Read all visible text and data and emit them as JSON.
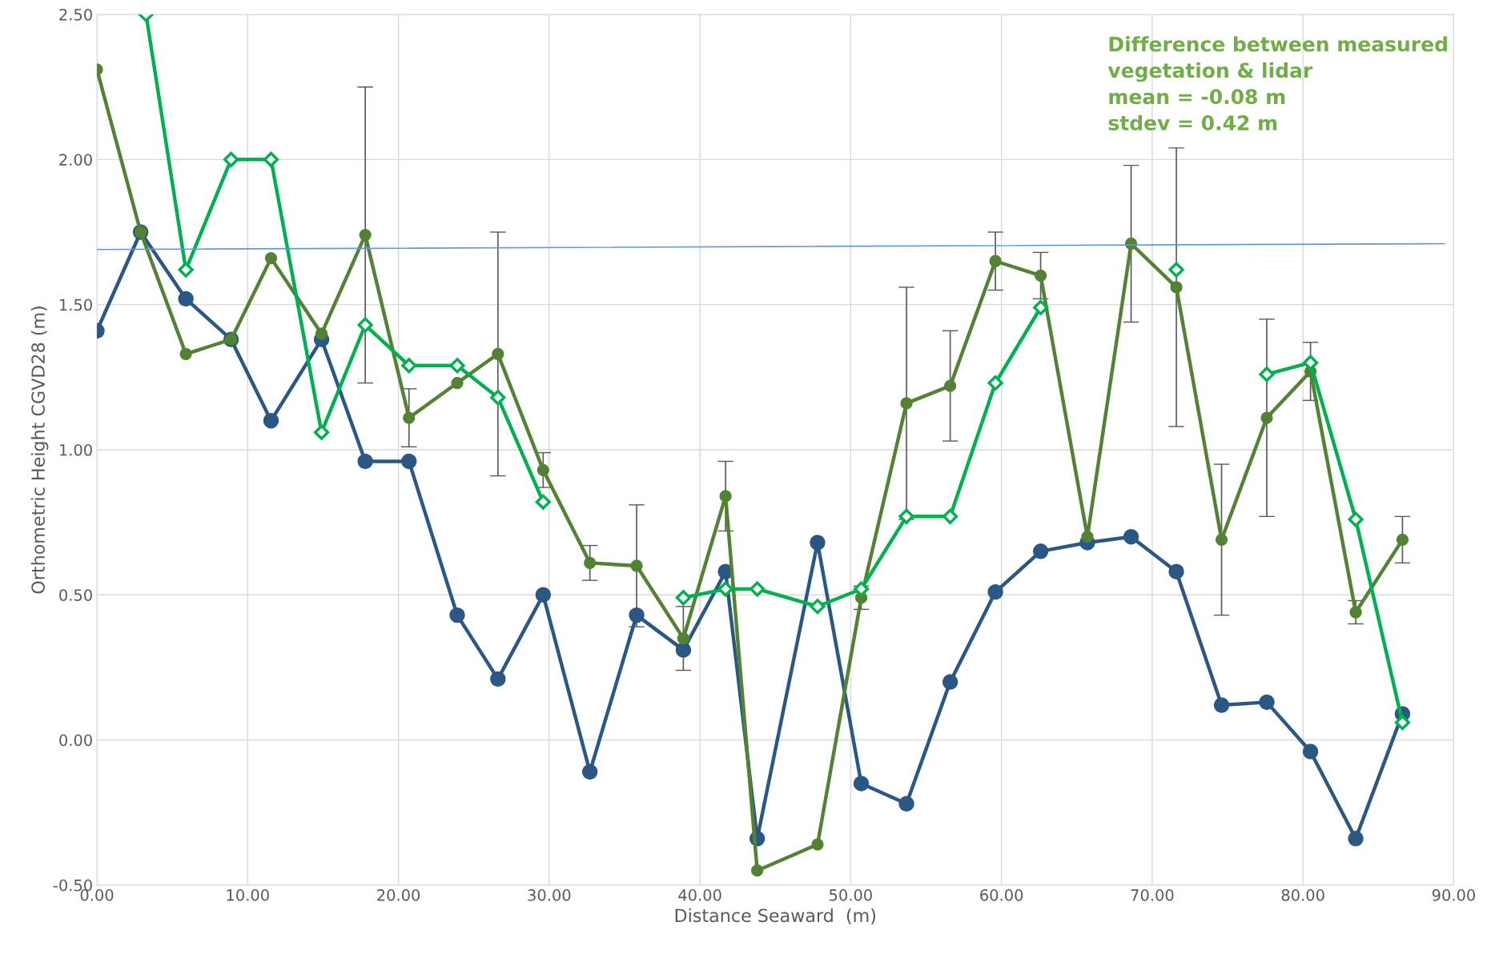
{
  "chart_data": {
    "type": "line",
    "xlabel": "Distance Seaward  (m)",
    "ylabel": "Orthometric Height CGVD28 (m)",
    "x": [
      0,
      2.9,
      5.9,
      8.9,
      11.55,
      14.9,
      17.8,
      20.7,
      23.9,
      26.6,
      29.6,
      32.7,
      35.8,
      38.9,
      41.7,
      43.8,
      47.8,
      50.7,
      53.7,
      56.6,
      59.6,
      62.6,
      65.7,
      68.6,
      71.6,
      74.6,
      77.6,
      80.5,
      83.5,
      86.6
    ],
    "series": [
      {
        "color": "#2a5783",
        "marker": "circle",
        "values": [
          1.41,
          1.75,
          1.52,
          1.38,
          1.1,
          1.38,
          0.96,
          0.96,
          0.43,
          0.21,
          0.5,
          -0.11,
          0.43,
          0.31,
          0.58,
          -0.34,
          0.68,
          -0.15,
          -0.22,
          0.2,
          0.51,
          0.65,
          0.68,
          0.7,
          0.58,
          0.12,
          0.13,
          -0.04,
          -0.34,
          0.09
        ]
      },
      {
        "color": "#548235",
        "marker": "circle",
        "values": [
          2.31,
          1.75,
          1.33,
          1.38,
          1.66,
          1.4,
          1.74,
          1.11,
          1.23,
          1.33,
          0.93,
          0.61,
          0.6,
          0.35,
          0.84,
          -0.45,
          -0.36,
          0.49,
          1.16,
          1.22,
          1.65,
          1.6,
          0.7,
          1.71,
          1.56,
          0.69,
          1.11,
          1.27,
          0.44,
          0.69
        ],
        "errors": [
          null,
          null,
          null,
          null,
          null,
          null,
          0.51,
          0.1,
          null,
          0.42,
          0.06,
          0.06,
          0.21,
          0.11,
          0.12,
          null,
          null,
          0.04,
          0.4,
          0.19,
          0.1,
          0.08,
          null,
          0.27,
          0.48,
          0.26,
          0.34,
          0.1,
          0.04,
          0.08
        ]
      },
      {
        "color": "#00b050",
        "marker": "diamond",
        "x": [
          3.26,
          5.9,
          8.9,
          11.55,
          14.9,
          17.8,
          20.7,
          23.9,
          26.6,
          29.6,
          32.7,
          35.8,
          38.9,
          41.7,
          43.8,
          47.8,
          50.7,
          53.7,
          56.6,
          59.6,
          62.6,
          65.7,
          68.6,
          71.6,
          74.6,
          77.6,
          80.5,
          83.5,
          86.6
        ],
        "values": [
          2.5,
          1.62,
          2.0,
          2.0,
          1.06,
          1.43,
          1.29,
          1.29,
          1.18,
          0.82,
          null,
          null,
          0.49,
          0.52,
          0.52,
          0.46,
          0.52,
          0.77,
          0.77,
          1.23,
          1.49,
          null,
          null,
          1.62,
          null,
          1.26,
          1.3,
          0.76,
          0.06
        ]
      },
      {
        "color": "#5b9bd5",
        "marker": "none",
        "x": [
          0,
          89.4
        ],
        "values": [
          1.69,
          1.71
        ]
      }
    ],
    "xlim": [
      0,
      90
    ],
    "ylim": [
      -0.5,
      2.5
    ],
    "xticks": [
      {
        "value": 0,
        "label": "0.00"
      },
      {
        "value": 10,
        "label": "10.00"
      },
      {
        "value": 20,
        "label": "20.00"
      },
      {
        "value": 30,
        "label": "30.00"
      },
      {
        "value": 40,
        "label": "40.00"
      },
      {
        "value": 50,
        "label": "50.00"
      },
      {
        "value": 60,
        "label": "60.00"
      },
      {
        "value": 70,
        "label": "70.00"
      },
      {
        "value": 80,
        "label": "80.00"
      },
      {
        "value": 90,
        "label": "90.00"
      }
    ],
    "yticks": [
      {
        "value": -0.5,
        "label": "-0.50"
      },
      {
        "value": 0,
        "label": "0.00"
      },
      {
        "value": 0.5,
        "label": "0.50"
      },
      {
        "value": 1,
        "label": "1.00"
      },
      {
        "value": 1.5,
        "label": "1.50"
      },
      {
        "value": 2,
        "label": "2.00"
      },
      {
        "value": 2.5,
        "label": "2.50"
      }
    ],
    "grid": true,
    "legend": false,
    "annotations": [
      "Difference between measured\nvegetation & lidar\nmean = -0.08 m\nstdev = 0.42 m"
    ]
  }
}
